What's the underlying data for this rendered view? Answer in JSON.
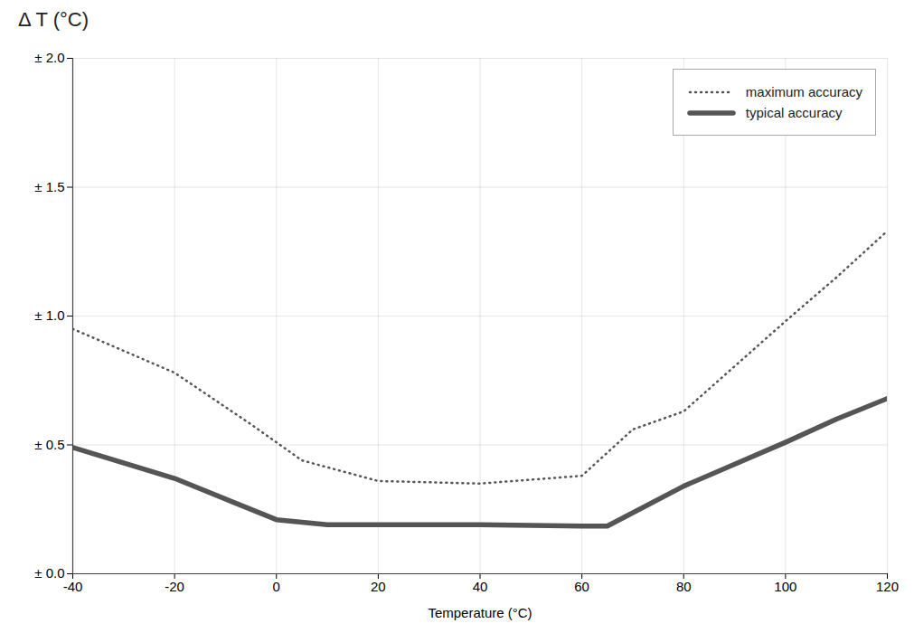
{
  "chart_data": {
    "type": "line",
    "title": "Δ T (°C)",
    "xlabel": "Temperature (°C)",
    "xlim": [
      -40,
      120
    ],
    "ylim": [
      0.0,
      2.0
    ],
    "xticks": [
      -40,
      -20,
      0,
      20,
      40,
      60,
      80,
      100,
      120
    ],
    "yticks": [
      {
        "value": 0.0,
        "label": "± 0.0"
      },
      {
        "value": 0.5,
        "label": "± 0.5"
      },
      {
        "value": 1.0,
        "label": "± 1.0"
      },
      {
        "value": 1.5,
        "label": "± 1.5"
      },
      {
        "value": 2.0,
        "label": "± 2.0"
      }
    ],
    "series": [
      {
        "name": "maximum accuracy",
        "color": "#555555",
        "line_style": "dotted",
        "x": [
          -40,
          -20,
          -5,
          5,
          20,
          40,
          60,
          70,
          80,
          100,
          110,
          120
        ],
        "values": [
          0.95,
          0.78,
          0.58,
          0.44,
          0.36,
          0.35,
          0.38,
          0.56,
          0.63,
          0.98,
          1.15,
          1.33
        ]
      },
      {
        "name": "typical accuracy",
        "color": "#555555",
        "line_style": "solid",
        "x": [
          -40,
          -20,
          0,
          10,
          20,
          40,
          60,
          65,
          80,
          100,
          110,
          120
        ],
        "values": [
          0.49,
          0.37,
          0.21,
          0.19,
          0.19,
          0.19,
          0.185,
          0.185,
          0.34,
          0.51,
          0.6,
          0.68
        ]
      }
    ],
    "grid": true,
    "legend": "upper right"
  }
}
